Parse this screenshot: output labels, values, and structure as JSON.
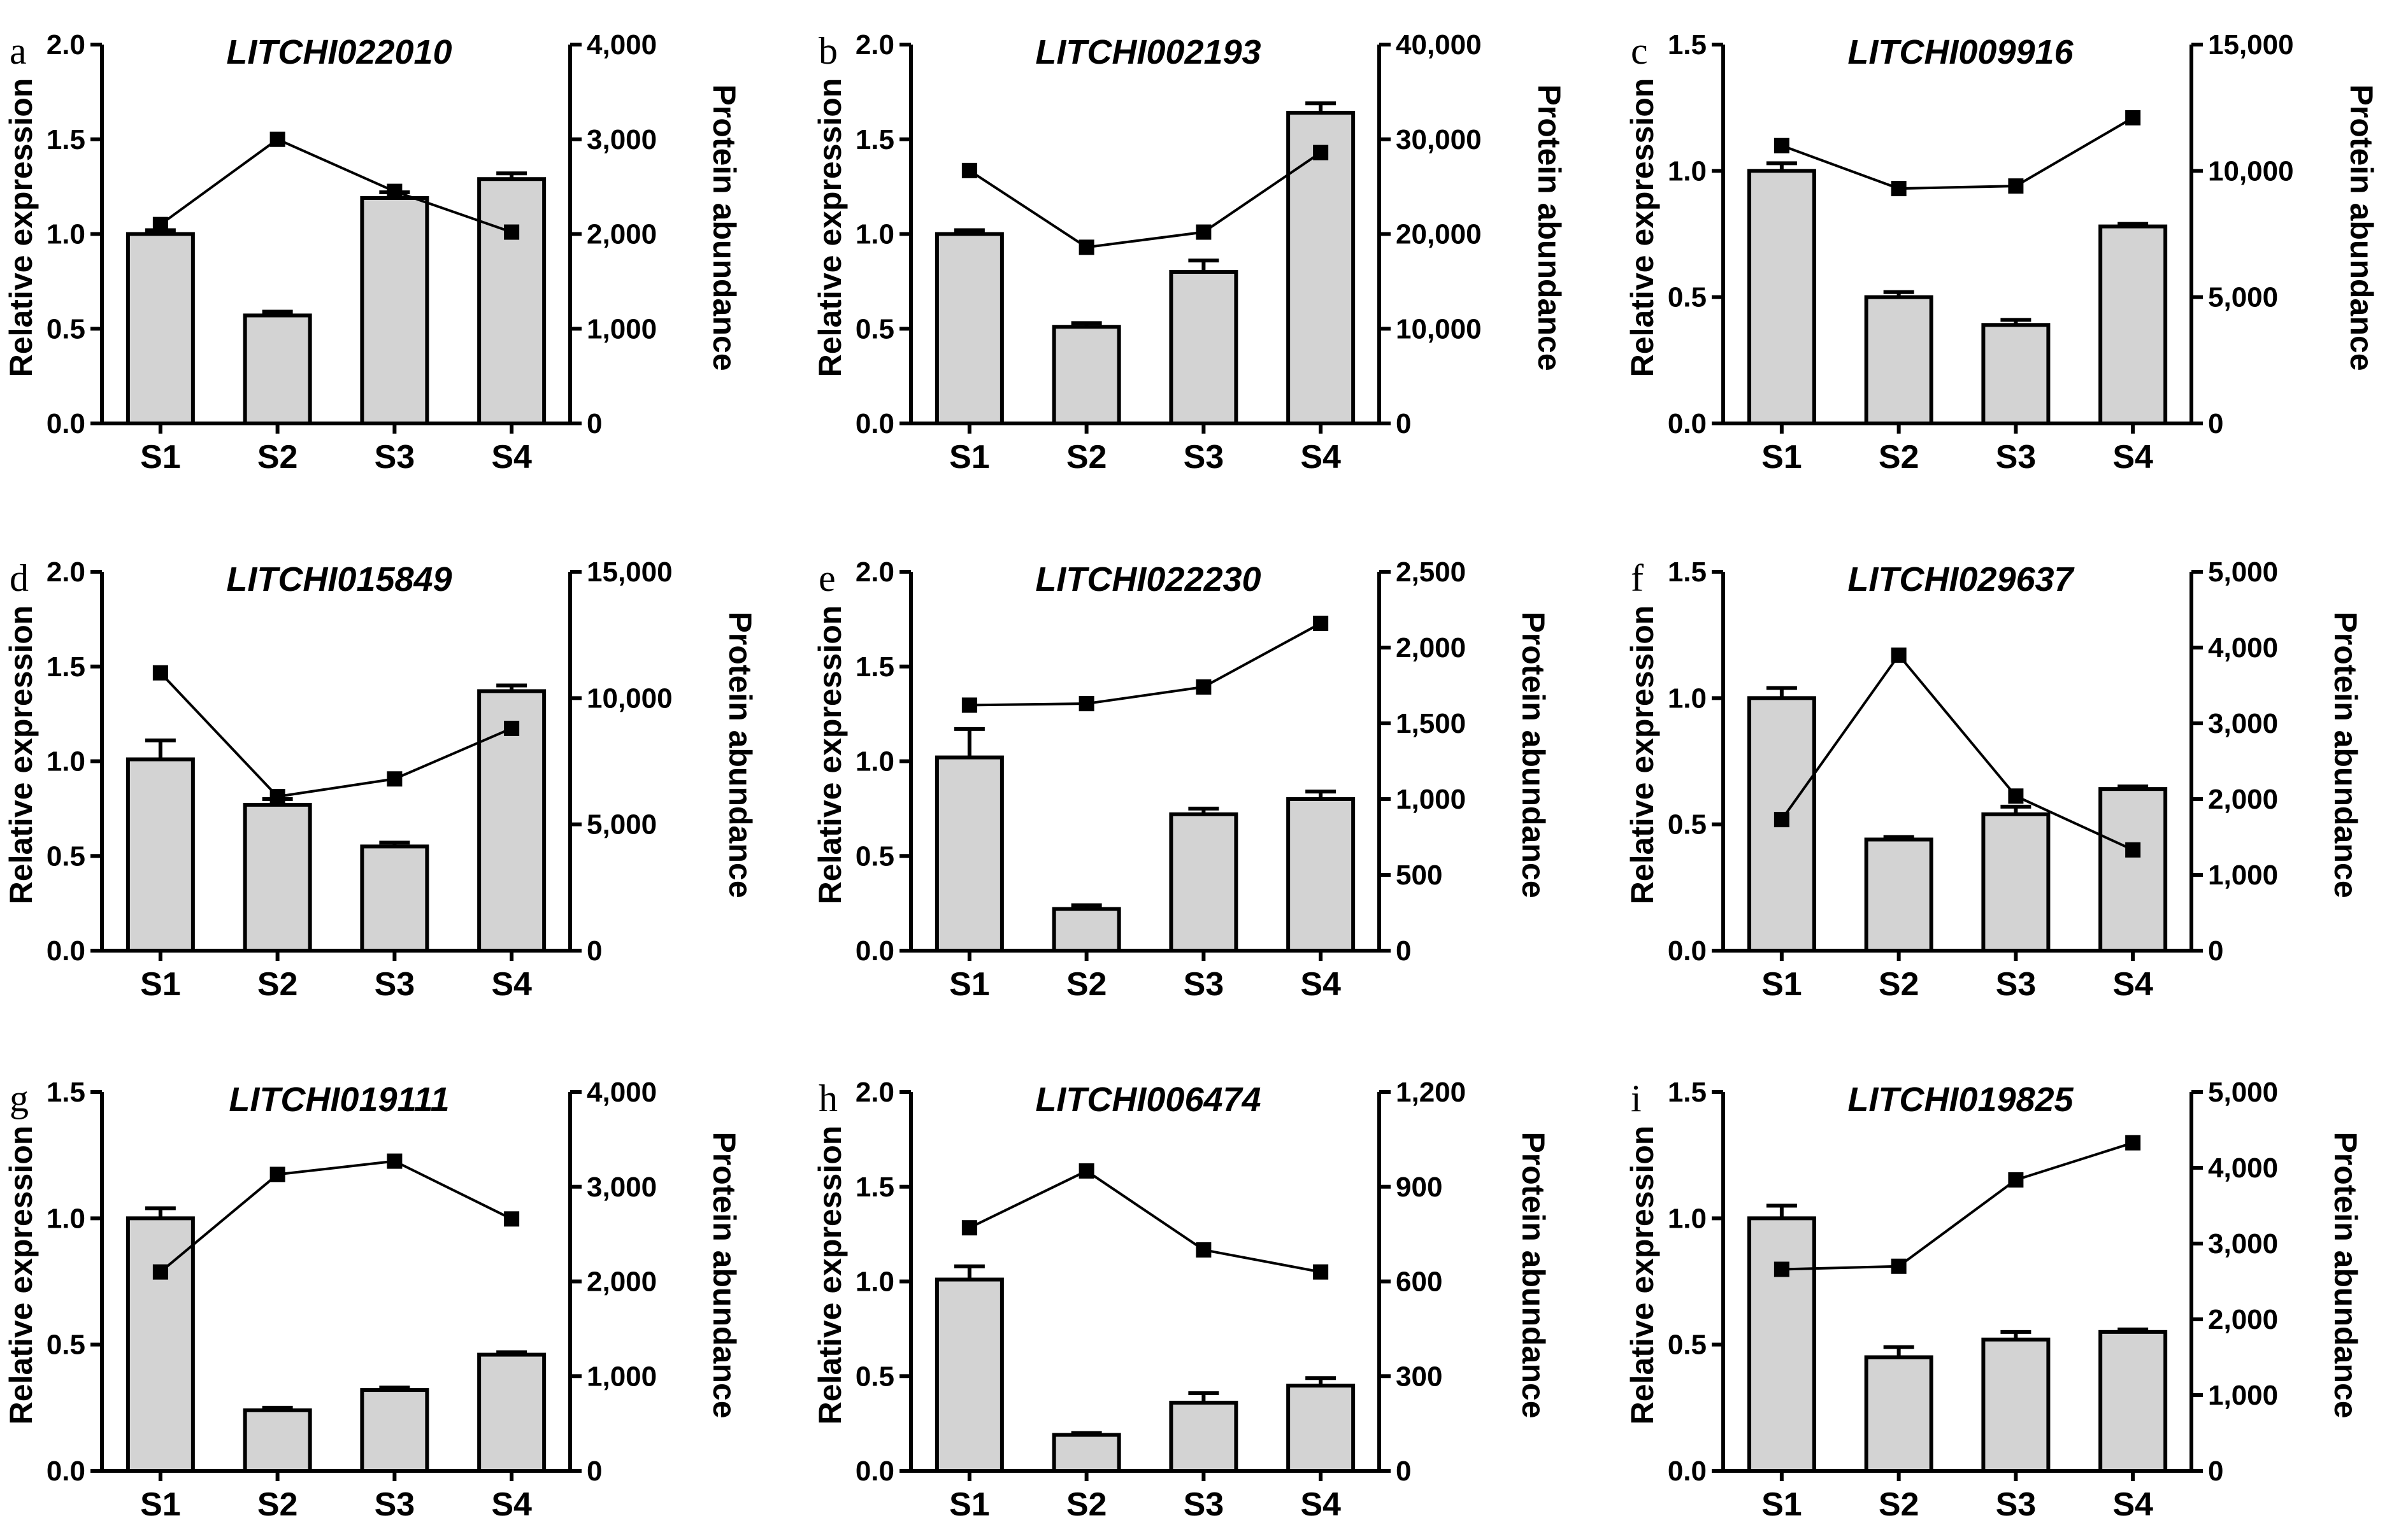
{
  "figure": {
    "categories": [
      "S1",
      "S2",
      "S3",
      "S4"
    ],
    "left_axis_label": "Relative expression",
    "right_axis_label": "Protein abundance",
    "bar_color": "#d3d3d3",
    "line_color": "#000000"
  },
  "chart_data": [
    {
      "type": "bar",
      "panel": "a",
      "title": "LITCHI022010",
      "categories": [
        "S1",
        "S2",
        "S3",
        "S4"
      ],
      "ylabel": "Relative expression",
      "y2label": "Protein abundance",
      "ylim": [
        0,
        2.0
      ],
      "yticks": [
        "0.0",
        "0.5",
        "1.0",
        "1.5",
        "2.0"
      ],
      "y2lim": [
        0,
        4000
      ],
      "y2ticks": [
        "0",
        "1,000",
        "2,000",
        "3,000",
        "4,000"
      ],
      "series": [
        {
          "name": "Relative expression",
          "type": "bar",
          "values": [
            1.0,
            0.57,
            1.19,
            1.29
          ],
          "errors": [
            0.02,
            0.02,
            0.03,
            0.03
          ]
        },
        {
          "name": "Protein abundance",
          "type": "line",
          "values": [
            2100,
            3000,
            2450,
            2020
          ]
        }
      ]
    },
    {
      "type": "bar",
      "panel": "b",
      "title": "LITCHI002193",
      "categories": [
        "S1",
        "S2",
        "S3",
        "S4"
      ],
      "ylabel": "Relative expression",
      "y2label": "Protein abundance",
      "ylim": [
        0,
        2.0
      ],
      "yticks": [
        "0.0",
        "0.5",
        "1.0",
        "1.5",
        "2.0"
      ],
      "y2lim": [
        0,
        40000
      ],
      "y2ticks": [
        "0",
        "10,000",
        "20,000",
        "30,000",
        "40,000"
      ],
      "series": [
        {
          "name": "Relative expression",
          "type": "bar",
          "values": [
            1.0,
            0.51,
            0.8,
            1.64
          ],
          "errors": [
            0.02,
            0.02,
            0.06,
            0.05
          ]
        },
        {
          "name": "Protein abundance",
          "type": "line",
          "values": [
            26700,
            18600,
            20200,
            28600
          ]
        }
      ]
    },
    {
      "type": "bar",
      "panel": "c",
      "title": "LITCHI009916",
      "categories": [
        "S1",
        "S2",
        "S3",
        "S4"
      ],
      "ylabel": "Relative expression",
      "y2label": "Protein abundance",
      "ylim": [
        0,
        1.5
      ],
      "yticks": [
        "0.0",
        "0.5",
        "1.0",
        "1.5"
      ],
      "y2lim": [
        0,
        15000
      ],
      "y2ticks": [
        "0",
        "5,000",
        "10,000",
        "15,000"
      ],
      "series": [
        {
          "name": "Relative expression",
          "type": "bar",
          "values": [
            1.0,
            0.5,
            0.39,
            0.78
          ],
          "errors": [
            0.03,
            0.02,
            0.02,
            0.01
          ]
        },
        {
          "name": "Protein abundance",
          "type": "line",
          "values": [
            11000,
            9300,
            9400,
            12100
          ]
        }
      ]
    },
    {
      "type": "bar",
      "panel": "d",
      "title": "LITCHI015849",
      "categories": [
        "S1",
        "S2",
        "S3",
        "S4"
      ],
      "ylabel": "Relative expression",
      "y2label": "Protein abundance",
      "ylim": [
        0,
        2.0
      ],
      "yticks": [
        "0.0",
        "0.5",
        "1.0",
        "1.5",
        "2.0"
      ],
      "y2lim": [
        0,
        15000
      ],
      "y2ticks": [
        "0",
        "5,000",
        "10,000",
        "15,000"
      ],
      "series": [
        {
          "name": "Relative expression",
          "type": "bar",
          "values": [
            1.01,
            0.77,
            0.55,
            1.37
          ],
          "errors": [
            0.1,
            0.03,
            0.02,
            0.03
          ]
        },
        {
          "name": "Protein abundance",
          "type": "line",
          "values": [
            11000,
            6100,
            6800,
            8800
          ]
        }
      ]
    },
    {
      "type": "bar",
      "panel": "e",
      "title": "LITCHI022230",
      "categories": [
        "S1",
        "S2",
        "S3",
        "S4"
      ],
      "ylabel": "Relative expression",
      "y2label": "Protein abundance",
      "ylim": [
        0,
        2.0
      ],
      "yticks": [
        "0.0",
        "0.5",
        "1.0",
        "1.5",
        "2.0"
      ],
      "y2lim": [
        0,
        2500
      ],
      "y2ticks": [
        "0",
        "500",
        "1,000",
        "1,500",
        "2,000",
        "2,500"
      ],
      "series": [
        {
          "name": "Relative expression",
          "type": "bar",
          "values": [
            1.02,
            0.22,
            0.72,
            0.8
          ],
          "errors": [
            0.15,
            0.02,
            0.03,
            0.04
          ]
        },
        {
          "name": "Protein abundance",
          "type": "line",
          "values": [
            1620,
            1630,
            1740,
            2160
          ]
        }
      ]
    },
    {
      "type": "bar",
      "panel": "f",
      "title": "LITCHI029637",
      "categories": [
        "S1",
        "S2",
        "S3",
        "S4"
      ],
      "ylabel": "Relative expression",
      "y2label": "Protein abundance",
      "ylim": [
        0,
        1.5
      ],
      "yticks": [
        "0.0",
        "0.5",
        "1.0",
        "1.5"
      ],
      "y2lim": [
        0,
        5000
      ],
      "y2ticks": [
        "0",
        "1,000",
        "2,000",
        "3,000",
        "4,000",
        "5,000"
      ],
      "series": [
        {
          "name": "Relative expression",
          "type": "bar",
          "values": [
            1.0,
            0.44,
            0.54,
            0.64
          ],
          "errors": [
            0.04,
            0.01,
            0.03,
            0.01
          ]
        },
        {
          "name": "Protein abundance",
          "type": "line",
          "values": [
            1730,
            3900,
            2040,
            1330
          ]
        }
      ]
    },
    {
      "type": "bar",
      "panel": "g",
      "title": "LITCHI019111",
      "categories": [
        "S1",
        "S2",
        "S3",
        "S4"
      ],
      "ylabel": "Relative expression",
      "y2label": "Protein abundance",
      "ylim": [
        0,
        1.5
      ],
      "yticks": [
        "0.0",
        "0.5",
        "1.0",
        "1.5"
      ],
      "y2lim": [
        0,
        4000
      ],
      "y2ticks": [
        "0",
        "1,000",
        "2,000",
        "3,000",
        "4,000"
      ],
      "series": [
        {
          "name": "Relative expression",
          "type": "bar",
          "values": [
            1.0,
            0.24,
            0.32,
            0.46
          ],
          "errors": [
            0.04,
            0.01,
            0.01,
            0.01
          ]
        },
        {
          "name": "Protein abundance",
          "type": "line",
          "values": [
            2100,
            3130,
            3270,
            2660
          ]
        }
      ]
    },
    {
      "type": "bar",
      "panel": "h",
      "title": "LITCHI006474",
      "categories": [
        "S1",
        "S2",
        "S3",
        "S4"
      ],
      "ylabel": "Relative expression",
      "y2label": "Protein abundance",
      "ylim": [
        0,
        2.0
      ],
      "yticks": [
        "0.0",
        "0.5",
        "1.0",
        "1.5",
        "2.0"
      ],
      "y2lim": [
        0,
        1200
      ],
      "y2ticks": [
        "0",
        "300",
        "600",
        "900",
        "1,200"
      ],
      "series": [
        {
          "name": "Relative expression",
          "type": "bar",
          "values": [
            1.01,
            0.19,
            0.36,
            0.45
          ],
          "errors": [
            0.07,
            0.01,
            0.05,
            0.04
          ]
        },
        {
          "name": "Protein abundance",
          "type": "line",
          "values": [
            770,
            950,
            700,
            630
          ]
        }
      ]
    },
    {
      "type": "bar",
      "panel": "i",
      "title": "LITCHI019825",
      "categories": [
        "S1",
        "S2",
        "S3",
        "S4"
      ],
      "ylabel": "Relative expression",
      "y2label": "Protein abundance",
      "ylim": [
        0,
        1.5
      ],
      "yticks": [
        "0.0",
        "0.5",
        "1.0",
        "1.5"
      ],
      "y2lim": [
        0,
        5000
      ],
      "y2ticks": [
        "0",
        "1,000",
        "2,000",
        "3,000",
        "4,000",
        "5,000"
      ],
      "series": [
        {
          "name": "Relative expression",
          "type": "bar",
          "values": [
            1.0,
            0.45,
            0.52,
            0.55
          ],
          "errors": [
            0.05,
            0.04,
            0.03,
            0.01
          ]
        },
        {
          "name": "Protein abundance",
          "type": "line",
          "values": [
            2660,
            2700,
            3840,
            4330
          ]
        }
      ]
    }
  ]
}
